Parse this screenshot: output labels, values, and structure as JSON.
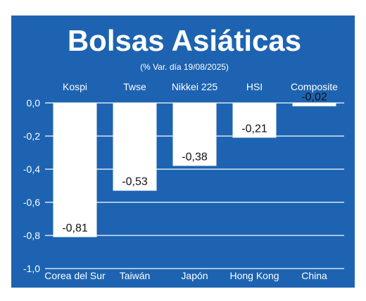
{
  "colors": {
    "background": "#1d63b1",
    "bar": "#ffffff",
    "grid": "#ffffff",
    "text": "#ffffff",
    "value_text": "#111111"
  },
  "chart_data": {
    "type": "bar",
    "title": "Bolsas Asiáticas",
    "subtitle": "(% Var. día  19/08/2025)",
    "categories": [
      "Corea del Sur",
      "Taiwán",
      "Japón",
      "Hong Kong",
      "China"
    ],
    "index_names": [
      "Kospi",
      "Twse",
      "Nikkei 225",
      "HSI",
      "Composite"
    ],
    "values": [
      -0.81,
      -0.53,
      -0.38,
      -0.21,
      -0.02
    ],
    "value_labels": [
      "-0,81",
      "-0,53",
      "-0,38",
      "-0,21",
      "-0,02"
    ],
    "ylim": [
      -1.0,
      0.0
    ],
    "yticks": [
      0.0,
      -0.2,
      -0.4,
      -0.6,
      -0.8,
      -1.0
    ],
    "ytick_labels": [
      "0,0",
      "-0,2",
      "-0,4",
      "-0,6",
      "-0,8",
      "-1,0"
    ],
    "grid": true,
    "xlabel": "",
    "ylabel": ""
  }
}
